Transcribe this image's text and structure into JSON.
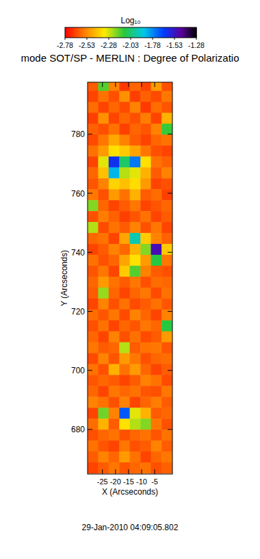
{
  "chart_data": {
    "type": "heatmap",
    "title": "mode SOT/SP - MERLIN : Degree of Polarizatio",
    "x_label": "X (Arcseconds)",
    "y_label": "Y (Arcseconds)",
    "annotation": "29-Jan-2010 04:09:05.802",
    "xlim": [
      -30.7,
      1.8
    ],
    "ylim": [
      664.9,
      797.6
    ],
    "xticks": [
      -25,
      -20,
      -15,
      -10,
      -5
    ],
    "yticks": [
      680,
      700,
      720,
      740,
      760,
      780
    ],
    "x": [
      -28.7,
      -24.6,
      -20.6,
      -16.5,
      -12.5,
      -8.4,
      -4.4,
      -0.3
    ],
    "y": [
      796.5,
      792.8,
      789.1,
      785.4,
      781.7,
      778.0,
      774.3,
      770.6,
      766.9,
      763.2,
      759.5,
      755.8,
      752.1,
      748.4,
      744.7,
      741.0,
      737.3,
      733.6,
      729.9,
      726.2,
      722.5,
      718.8,
      715.1,
      711.4,
      707.7,
      704.0,
      700.3,
      696.6,
      692.9,
      689.2,
      685.5,
      681.8,
      678.1,
      674.4,
      670.7,
      667.0
    ],
    "z": [
      [
        -2.62,
        -2.15,
        -2.55,
        -2.68,
        -2.6,
        -2.66,
        -2.5,
        -2.64
      ],
      [
        -2.66,
        -2.58,
        -2.64,
        -2.52,
        -2.67,
        -2.61,
        -2.65,
        -2.57
      ],
      [
        -2.59,
        -2.66,
        -2.6,
        -2.65,
        -2.55,
        -2.68,
        -2.59,
        -2.63
      ],
      [
        -2.67,
        -2.52,
        -2.66,
        -2.6,
        -2.64,
        -2.56,
        -2.66,
        -2.45
      ],
      [
        -2.61,
        -2.64,
        -2.58,
        -2.67,
        -2.6,
        -2.63,
        -2.55,
        -2.12
      ],
      [
        -2.65,
        -2.57,
        -2.47,
        -2.55,
        -2.62,
        -2.66,
        -2.6,
        -2.58
      ],
      [
        -2.58,
        -2.5,
        -2.35,
        -2.4,
        -2.48,
        -2.57,
        -2.64,
        -2.66
      ],
      [
        -2.66,
        -2.3,
        -1.62,
        -2.05,
        -1.75,
        -2.35,
        -2.58,
        -2.61
      ],
      [
        -2.6,
        -2.42,
        -1.85,
        -2.25,
        -2.3,
        -2.45,
        -2.62,
        -2.55
      ],
      [
        -2.63,
        -2.55,
        -2.38,
        -2.42,
        -2.36,
        -2.5,
        -2.66,
        -2.64
      ],
      [
        -2.57,
        -2.64,
        -2.5,
        -2.58,
        -2.45,
        -2.62,
        -2.59,
        -2.67
      ],
      [
        -2.2,
        -2.6,
        -2.66,
        -2.62,
        -2.57,
        -2.66,
        -2.63,
        -2.6
      ],
      [
        -2.64,
        -2.56,
        -2.61,
        -2.67,
        -2.63,
        -2.58,
        -2.66,
        -2.62
      ],
      [
        -2.25,
        -2.65,
        -2.58,
        -2.62,
        -2.55,
        -2.64,
        -2.57,
        -2.66
      ],
      [
        -2.6,
        -2.58,
        -2.66,
        -2.48,
        -1.95,
        -2.4,
        -2.55,
        -2.61
      ],
      [
        -2.66,
        -2.62,
        -2.55,
        -2.6,
        -2.45,
        -2.2,
        -1.5,
        -2.4
      ],
      [
        -2.58,
        -2.64,
        -2.6,
        -2.48,
        -2.35,
        -2.5,
        -2.1,
        -2.57
      ],
      [
        -2.63,
        -2.57,
        -2.66,
        -2.4,
        -2.15,
        -2.55,
        -2.62,
        -2.64
      ],
      [
        -2.6,
        -2.5,
        -2.58,
        -2.62,
        -2.57,
        -2.64,
        -2.59,
        -2.6
      ],
      [
        -2.62,
        -2.22,
        -2.6,
        -2.66,
        -2.6,
        -2.57,
        -2.65,
        -2.58
      ],
      [
        -2.66,
        -2.55,
        -2.64,
        -2.58,
        -2.65,
        -2.62,
        -2.58,
        -2.63
      ],
      [
        -2.59,
        -2.63,
        -2.57,
        -2.65,
        -2.55,
        -2.6,
        -2.66,
        -2.55
      ],
      [
        -2.64,
        -2.58,
        -2.66,
        -2.6,
        -2.63,
        -2.57,
        -2.6,
        -2.1
      ],
      [
        -2.6,
        -2.66,
        -2.55,
        -2.64,
        -2.58,
        -2.65,
        -2.62,
        -2.5
      ],
      [
        -2.57,
        -2.62,
        -2.6,
        -2.25,
        -2.62,
        -2.58,
        -2.57,
        -2.63
      ],
      [
        -2.65,
        -2.55,
        -2.63,
        -2.5,
        -2.57,
        -2.64,
        -2.6,
        -2.59
      ],
      [
        -2.58,
        -2.64,
        -2.45,
        -2.58,
        -2.5,
        -2.6,
        -2.66,
        -2.62
      ],
      [
        -2.63,
        -2.6,
        -2.62,
        -2.66,
        -2.62,
        -2.55,
        -2.58,
        -2.65
      ],
      [
        -2.6,
        -2.66,
        -2.57,
        -2.6,
        -2.58,
        -2.63,
        -2.64,
        -2.57
      ],
      [
        -2.55,
        -2.58,
        -2.64,
        -2.55,
        -2.66,
        -2.6,
        -2.56,
        -2.62
      ],
      [
        -2.66,
        -2.18,
        -2.55,
        -1.7,
        -2.3,
        -2.45,
        -2.62,
        -2.6
      ],
      [
        -2.59,
        -2.45,
        -2.62,
        -2.35,
        -2.25,
        -2.2,
        -2.57,
        -2.64
      ],
      [
        -2.64,
        -2.6,
        -2.58,
        -2.64,
        -2.6,
        -2.58,
        -2.63,
        -2.58
      ],
      [
        -2.58,
        -2.63,
        -2.66,
        -2.57,
        -2.64,
        -2.62,
        -2.55,
        -2.62
      ],
      [
        -2.62,
        -2.55,
        -2.6,
        -2.5,
        -2.58,
        -2.66,
        -2.6,
        -2.57
      ],
      [
        -2.66,
        -2.62,
        -2.57,
        -2.63,
        -2.6,
        -2.58,
        -2.64,
        -2.61
      ]
    ],
    "colorbar": {
      "title": "Log₁₀",
      "range": [
        -2.78,
        -1.28
      ],
      "ticks": [
        -2.78,
        -2.53,
        -2.28,
        -2.03,
        -1.78,
        -1.53,
        -1.28
      ]
    }
  }
}
